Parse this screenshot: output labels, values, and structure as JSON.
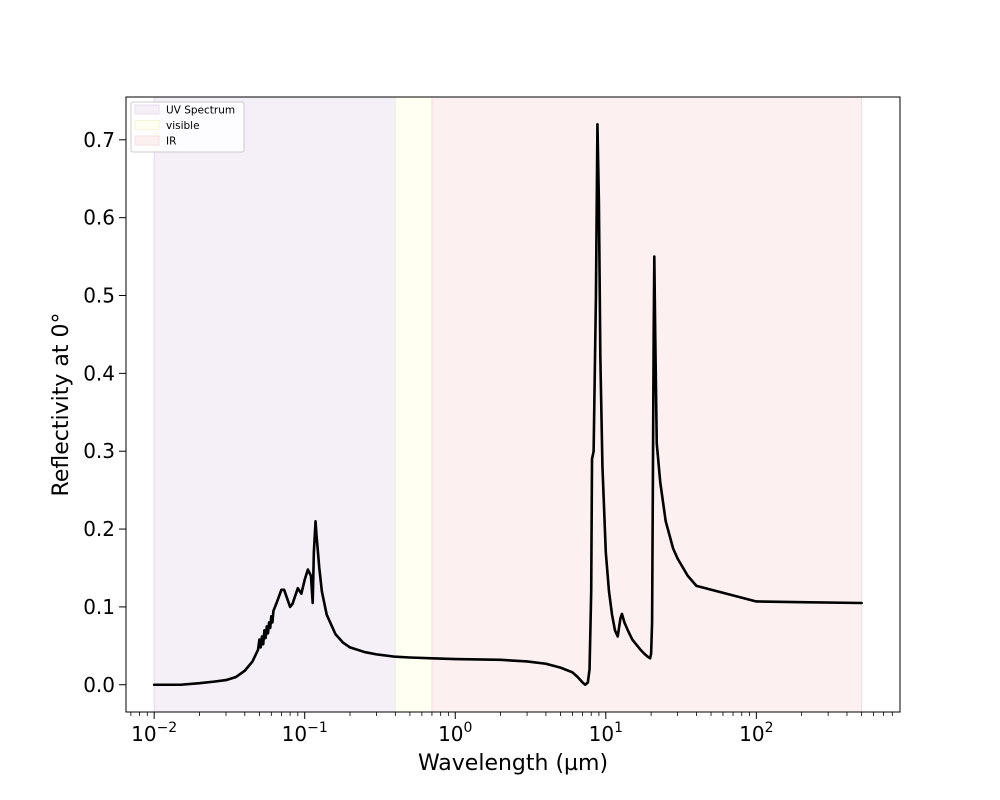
{
  "chart_data": {
    "type": "line",
    "xlabel": "Wavelength (µm)",
    "ylabel": "Reflectivity at 0°",
    "xscale": "log",
    "xlim": [
      0.0065,
      900
    ],
    "ylim": [
      -0.035,
      0.755
    ],
    "grid": false,
    "legend_placement": "top-left",
    "x_ticks": [
      {
        "base": "10",
        "exp": "−2",
        "value": 0.01
      },
      {
        "base": "10",
        "exp": "−1",
        "value": 0.1
      },
      {
        "base": "10",
        "exp": "0",
        "value": 1
      },
      {
        "base": "10",
        "exp": "1",
        "value": 10
      },
      {
        "base": "10",
        "exp": "2",
        "value": 100
      }
    ],
    "y_ticks": [
      "0.0",
      "0.1",
      "0.2",
      "0.3",
      "0.4",
      "0.5",
      "0.6",
      "0.7"
    ],
    "bands": [
      {
        "name": "UV Spectrum",
        "x0": 0.01,
        "x1": 0.4,
        "color": "#f5eff8",
        "edge": "#e6d9ef"
      },
      {
        "name": "visible",
        "x0": 0.4,
        "x1": 0.7,
        "color": "#fffff2",
        "edge": "#f3f0d0"
      },
      {
        "name": "IR",
        "x0": 0.7,
        "x1": 500,
        "color": "#fdf0f1",
        "edge": "#f6dadd"
      }
    ],
    "series": [
      {
        "color": "#000000",
        "points": [
          [
            0.01,
            0.0
          ],
          [
            0.015,
            0.0
          ],
          [
            0.02,
            0.002
          ],
          [
            0.025,
            0.004
          ],
          [
            0.03,
            0.006
          ],
          [
            0.035,
            0.01
          ],
          [
            0.04,
            0.018
          ],
          [
            0.045,
            0.03
          ],
          [
            0.049,
            0.045
          ],
          [
            0.05,
            0.058
          ],
          [
            0.051,
            0.048
          ],
          [
            0.052,
            0.062
          ],
          [
            0.053,
            0.052
          ],
          [
            0.054,
            0.07
          ],
          [
            0.055,
            0.06
          ],
          [
            0.056,
            0.075
          ],
          [
            0.057,
            0.066
          ],
          [
            0.058,
            0.08
          ],
          [
            0.059,
            0.073
          ],
          [
            0.06,
            0.088
          ],
          [
            0.061,
            0.08
          ],
          [
            0.062,
            0.095
          ],
          [
            0.065,
            0.105
          ],
          [
            0.07,
            0.122
          ],
          [
            0.073,
            0.122
          ],
          [
            0.078,
            0.106
          ],
          [
            0.08,
            0.1
          ],
          [
            0.083,
            0.104
          ],
          [
            0.09,
            0.124
          ],
          [
            0.095,
            0.117
          ],
          [
            0.1,
            0.135
          ],
          [
            0.105,
            0.148
          ],
          [
            0.11,
            0.14
          ],
          [
            0.113,
            0.105
          ],
          [
            0.115,
            0.17
          ],
          [
            0.118,
            0.21
          ],
          [
            0.12,
            0.19
          ],
          [
            0.125,
            0.15
          ],
          [
            0.13,
            0.12
          ],
          [
            0.14,
            0.09
          ],
          [
            0.16,
            0.065
          ],
          [
            0.18,
            0.054
          ],
          [
            0.2,
            0.048
          ],
          [
            0.25,
            0.042
          ],
          [
            0.3,
            0.039
          ],
          [
            0.4,
            0.036
          ],
          [
            0.5,
            0.035
          ],
          [
            0.7,
            0.034
          ],
          [
            1.0,
            0.033
          ],
          [
            2.0,
            0.032
          ],
          [
            3.0,
            0.03
          ],
          [
            4.0,
            0.027
          ],
          [
            5.0,
            0.022
          ],
          [
            6.0,
            0.016
          ],
          [
            6.5,
            0.01
          ],
          [
            7.0,
            0.003
          ],
          [
            7.3,
            0.0
          ],
          [
            7.6,
            0.003
          ],
          [
            7.8,
            0.02
          ],
          [
            8.0,
            0.12
          ],
          [
            8.1,
            0.29
          ],
          [
            8.3,
            0.3
          ],
          [
            8.6,
            0.5
          ],
          [
            8.8,
            0.72
          ],
          [
            9.0,
            0.62
          ],
          [
            9.2,
            0.42
          ],
          [
            9.5,
            0.28
          ],
          [
            10.0,
            0.17
          ],
          [
            10.5,
            0.12
          ],
          [
            11.0,
            0.09
          ],
          [
            11.5,
            0.07
          ],
          [
            12.0,
            0.062
          ],
          [
            12.5,
            0.085
          ],
          [
            12.8,
            0.091
          ],
          [
            13.3,
            0.08
          ],
          [
            14.0,
            0.07
          ],
          [
            15.0,
            0.058
          ],
          [
            17.0,
            0.045
          ],
          [
            18.0,
            0.04
          ],
          [
            19.0,
            0.036
          ],
          [
            19.7,
            0.034
          ],
          [
            20.0,
            0.04
          ],
          [
            20.3,
            0.08
          ],
          [
            20.6,
            0.3
          ],
          [
            20.8,
            0.45
          ],
          [
            21.0,
            0.55
          ],
          [
            21.3,
            0.45
          ],
          [
            21.8,
            0.31
          ],
          [
            23.0,
            0.26
          ],
          [
            25.0,
            0.21
          ],
          [
            28.0,
            0.175
          ],
          [
            30.0,
            0.162
          ],
          [
            35.0,
            0.14
          ],
          [
            40.0,
            0.127
          ],
          [
            100.0,
            0.107
          ],
          [
            200.0,
            0.106
          ],
          [
            500.0,
            0.105
          ]
        ]
      }
    ]
  }
}
